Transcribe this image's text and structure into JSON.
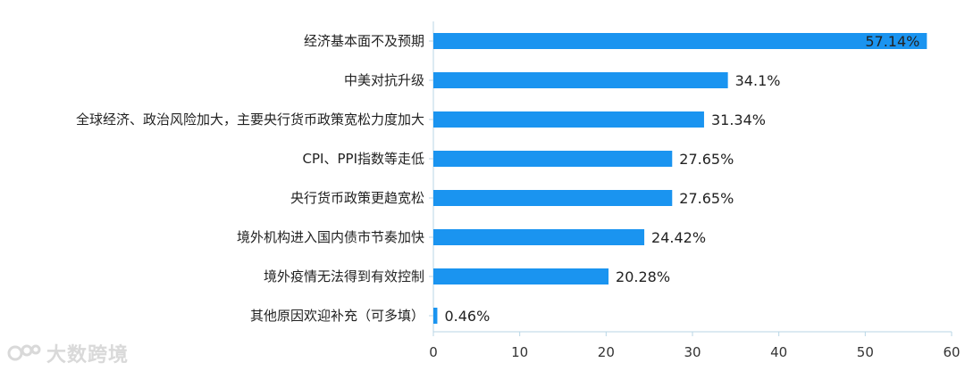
{
  "chart_data": {
    "type": "bar",
    "orientation": "horizontal",
    "categories": [
      "经济基本面不及预期",
      "中美对抗升级",
      "全球经济、政治风险加大，主要央行货币政策宽松力度加大",
      "CPI、PPI指数等走低",
      "央行货币政策更趋宽松",
      "境外机构进入国内债市节奏加快",
      "境外疫情无法得到有效控制",
      "其他原因欢迎补充（可多填）"
    ],
    "values": [
      57.14,
      34.1,
      31.34,
      27.65,
      27.65,
      24.42,
      20.28,
      0.46
    ],
    "value_labels": [
      "57.14%",
      "34.1%",
      "31.34%",
      "27.65%",
      "27.65%",
      "24.42%",
      "20.28%",
      "0.46%"
    ],
    "xticks": [
      "0",
      "10",
      "20",
      "30",
      "40",
      "50",
      "60"
    ],
    "xlim": [
      0,
      60
    ],
    "grid": false,
    "bar_color": "#1a94f0",
    "axis_color": "#b9d6e6"
  },
  "watermark": {
    "logo": "dashuju-logo-icon",
    "text": "大数跨境"
  }
}
